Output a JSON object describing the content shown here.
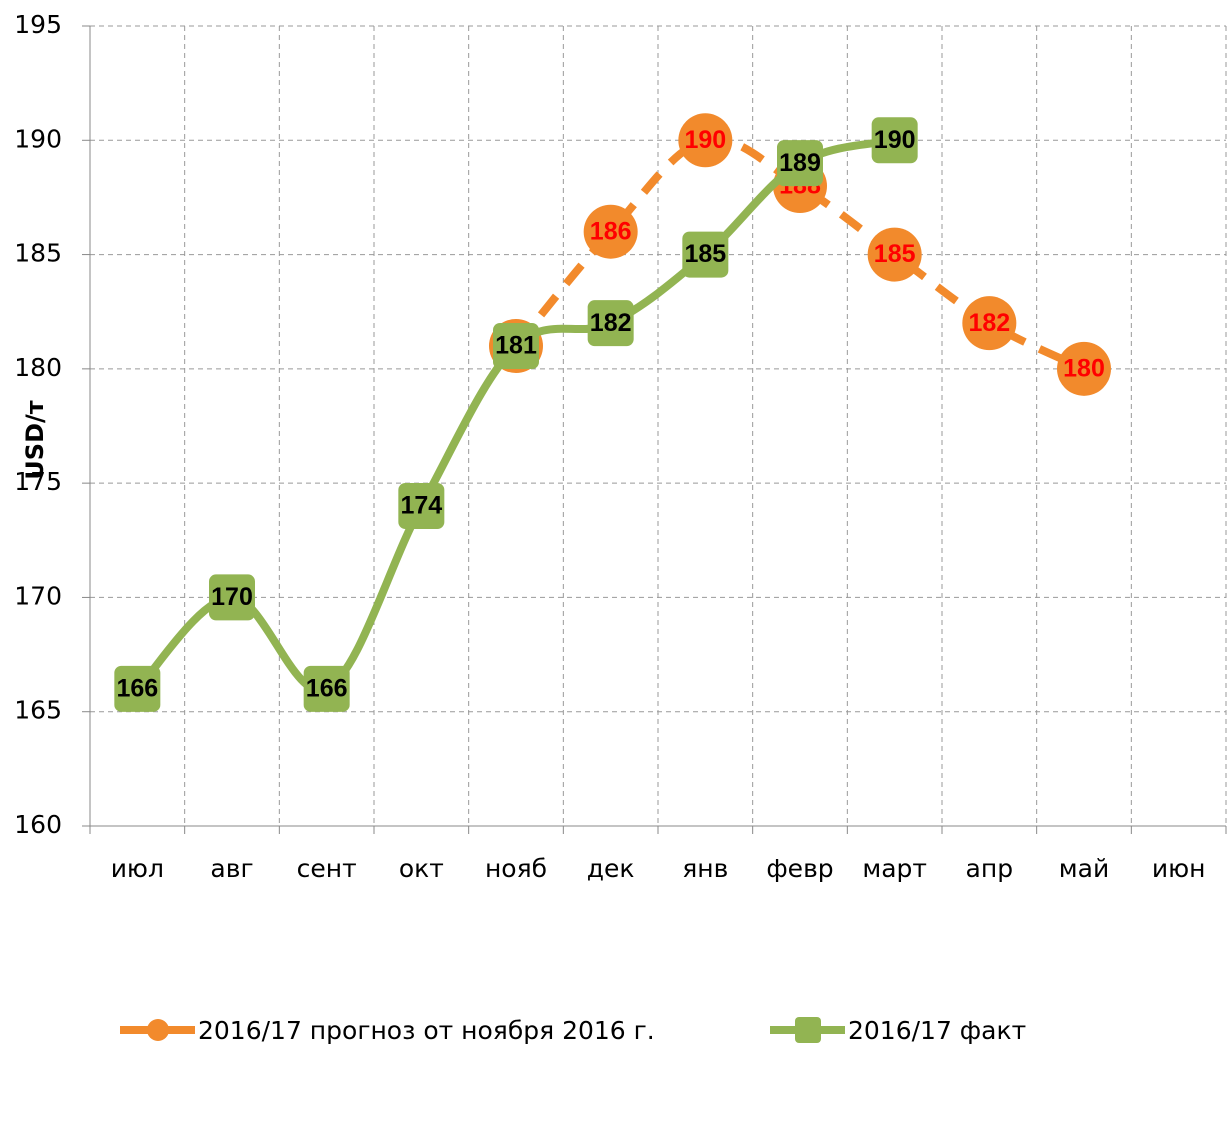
{
  "chart_data": {
    "type": "line",
    "y_label": "USD/т",
    "categories": [
      "июл",
      "авг",
      "сент",
      "окт",
      "нояб",
      "дек",
      "янв",
      "февр",
      "март",
      "апр",
      "май",
      "июн"
    ],
    "series": [
      {
        "name": "2016/17 прогноз от ноября 2016 г.",
        "color": "#f28a2c",
        "label_color": "#ff0000",
        "dashed": true,
        "marker": "circle",
        "values": [
          null,
          null,
          null,
          null,
          181,
          186,
          190,
          188,
          185,
          182,
          180,
          null
        ]
      },
      {
        "name": "2016/17 факт",
        "color": "#92b452",
        "label_color": "#000000",
        "dashed": false,
        "marker": "square",
        "values": [
          166,
          170,
          166,
          174,
          181,
          182,
          185,
          189,
          190,
          null,
          null,
          null
        ]
      }
    ],
    "ylim": [
      160,
      195
    ],
    "yticks": [
      160,
      165,
      170,
      175,
      180,
      185,
      190,
      195
    ],
    "grid": true,
    "legend": "bottom"
  }
}
